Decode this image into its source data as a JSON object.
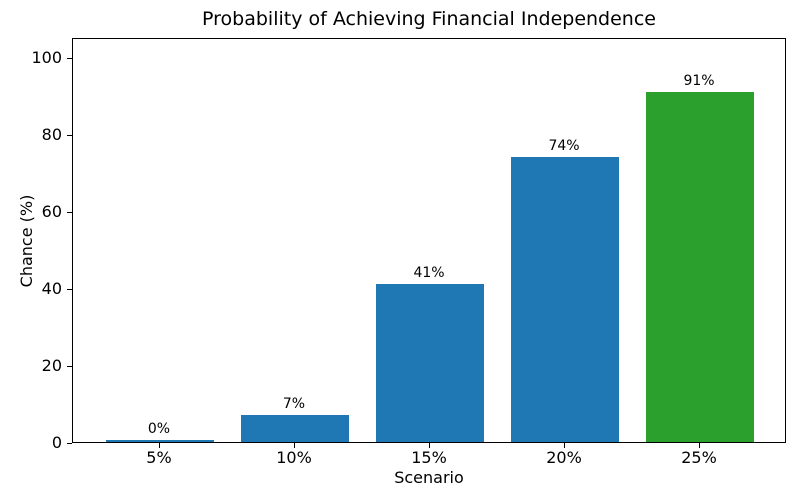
{
  "chart_data": {
    "type": "bar",
    "title": "Probability of Achieving Financial Independence",
    "xlabel": "Scenario",
    "ylabel": "Chance (%)",
    "categories": [
      "5%",
      "10%",
      "15%",
      "20%",
      "25%"
    ],
    "values": [
      0,
      7,
      41,
      74,
      91
    ],
    "bar_labels": [
      "0%",
      "7%",
      "41%",
      "74%",
      "91%"
    ],
    "bar_colors": [
      "#1f77b4",
      "#1f77b4",
      "#1f77b4",
      "#1f77b4",
      "#2ca02c"
    ],
    "yticks": [
      0,
      20,
      40,
      60,
      80,
      100
    ],
    "ylim": [
      0,
      105
    ],
    "grid": false,
    "legend": null,
    "spine_color": "#000000",
    "background_color": "#ffffff"
  }
}
